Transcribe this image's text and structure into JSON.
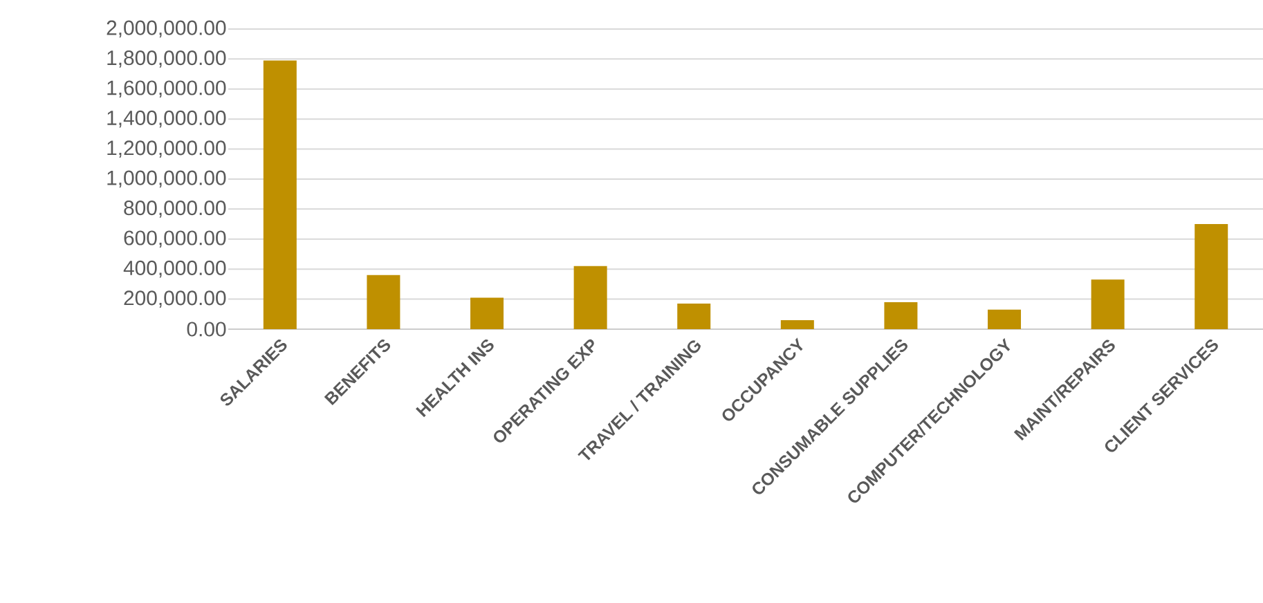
{
  "chart_data": {
    "type": "bar",
    "categories": [
      "SALARIES",
      "BENEFITS",
      "HEALTH INS",
      "OPERATING EXP",
      "TRAVEL / TRAINING",
      "OCCUPANCY",
      "CONSUMABLE SUPPLIES",
      "COMPUTER/TECHNOLOGY",
      "MAINT/REPAIRS",
      "CLIENT SERVICES"
    ],
    "values": [
      1790000,
      360000,
      210000,
      420000,
      170000,
      60000,
      180000,
      130000,
      330000,
      700000
    ],
    "color": "#bf9000",
    "ylim": [
      0,
      2000000
    ],
    "yticks": [
      {
        "value": 0,
        "label": "0.00"
      },
      {
        "value": 200000,
        "label": "200,000.00"
      },
      {
        "value": 400000,
        "label": "400,000.00"
      },
      {
        "value": 600000,
        "label": "600,000.00"
      },
      {
        "value": 800000,
        "label": "800,000.00"
      },
      {
        "value": 1000000,
        "label": "1,000,000.00"
      },
      {
        "value": 1200000,
        "label": "1,200,000.00"
      },
      {
        "value": 1400000,
        "label": "1,400,000.00"
      },
      {
        "value": 1600000,
        "label": "1,600,000.00"
      },
      {
        "value": 1800000,
        "label": "1,800,000.00"
      },
      {
        "value": 2000000,
        "label": "2,000,000.00"
      }
    ],
    "grid": "y"
  }
}
